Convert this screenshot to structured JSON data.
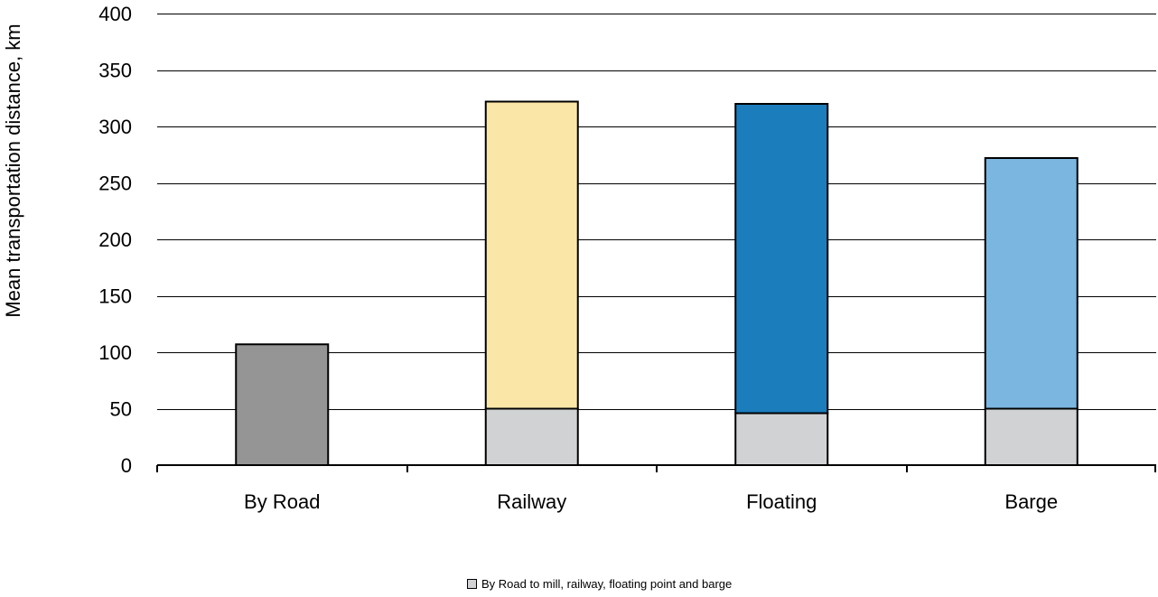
{
  "chart_data": {
    "type": "bar",
    "stacked": true,
    "title": "",
    "xlabel": "",
    "ylabel": "Mean  transportation distance,  km",
    "ylim": [
      0,
      400
    ],
    "yticks": [
      0,
      50,
      100,
      150,
      200,
      250,
      300,
      350,
      400
    ],
    "grid": true,
    "legend_position": "bottom",
    "categories": [
      "By Road",
      "Railway",
      "Floating",
      "Barge"
    ],
    "series": [
      {
        "name": "By Road to mill, railway, floating point and barge",
        "values": [
          107,
          50,
          46,
          50
        ],
        "color": "#d1d2d4",
        "colors": [
          "#959596",
          "#d1d2d4",
          "#d1d2d4",
          "#d1d2d4"
        ]
      },
      {
        "values": [
          0,
          272,
          274,
          222
        ],
        "colors": [
          "#959596",
          "#fae6a6",
          "#1c7dbc",
          "#7ab6df"
        ]
      }
    ],
    "legend": [
      {
        "label": "By Road to mill, railway, floating point and barge",
        "color": "#d1d2d4"
      }
    ]
  }
}
